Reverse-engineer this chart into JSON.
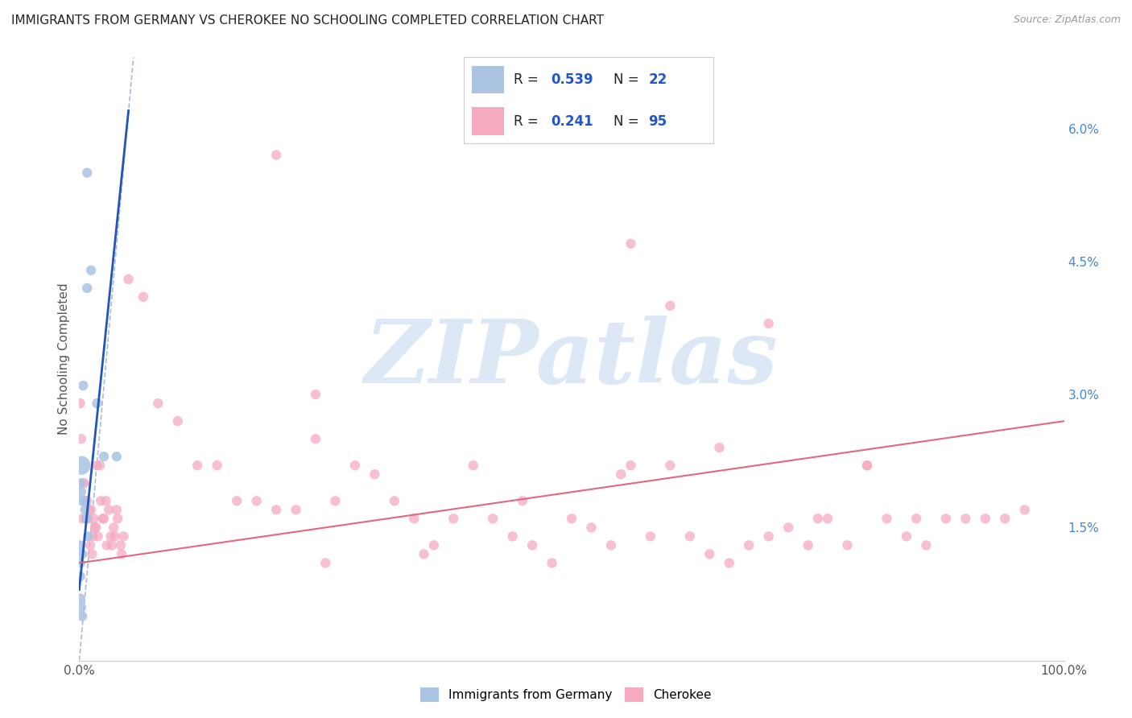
{
  "title": "IMMIGRANTS FROM GERMANY VS CHEROKEE NO SCHOOLING COMPLETED CORRELATION CHART",
  "source": "Source: ZipAtlas.com",
  "ylabel": "No Schooling Completed",
  "xlim": [
    0.0,
    1.0
  ],
  "ylim": [
    0.0,
    0.068
  ],
  "yticks_right": [
    0.015,
    0.03,
    0.045,
    0.06
  ],
  "ytickslabels_right": [
    "1.5%",
    "3.0%",
    "4.5%",
    "6.0%"
  ],
  "blue_color": "#aac4e2",
  "pink_color": "#f5aabf",
  "blue_line_color": "#2255bb",
  "pink_line_color": "#e06880",
  "dash_line_color": "#aabbdd",
  "watermark": "ZIPatlas",
  "watermark_blue": "#dce8f5",
  "watermark_gray": "#c8d8e8",
  "background_color": "#ffffff",
  "grid_color": "#dddddd",
  "title_fontsize": 11,
  "blue_x": [
    0.008,
    0.012,
    0.008,
    0.004,
    0.018,
    0.025,
    0.038,
    0.002,
    0.001,
    0.002,
    0.003,
    0.005,
    0.006,
    0.007,
    0.009,
    0.001,
    0.003,
    0.001,
    0.001,
    0.001,
    0.002,
    0.003
  ],
  "blue_y": [
    0.055,
    0.044,
    0.042,
    0.031,
    0.029,
    0.023,
    0.023,
    0.022,
    0.02,
    0.019,
    0.018,
    0.018,
    0.017,
    0.016,
    0.014,
    0.013,
    0.012,
    0.011,
    0.0095,
    0.007,
    0.006,
    0.005
  ],
  "blue_sizes": [
    80,
    80,
    80,
    80,
    80,
    80,
    80,
    280,
    80,
    80,
    80,
    80,
    80,
    80,
    80,
    80,
    80,
    80,
    80,
    80,
    80,
    80
  ],
  "pink_x": [
    0.005,
    0.008,
    0.012,
    0.015,
    0.018,
    0.022,
    0.025,
    0.028,
    0.032,
    0.035,
    0.038,
    0.042,
    0.045,
    0.002,
    0.004,
    0.006,
    0.009,
    0.011,
    0.014,
    0.016,
    0.019,
    0.021,
    0.024,
    0.027,
    0.03,
    0.033,
    0.036,
    0.039,
    0.043,
    0.001,
    0.003,
    0.007,
    0.01,
    0.013,
    0.017,
    0.05,
    0.065,
    0.08,
    0.1,
    0.12,
    0.14,
    0.16,
    0.18,
    0.2,
    0.22,
    0.24,
    0.26,
    0.28,
    0.3,
    0.32,
    0.34,
    0.36,
    0.38,
    0.4,
    0.42,
    0.44,
    0.46,
    0.48,
    0.5,
    0.52,
    0.54,
    0.56,
    0.58,
    0.6,
    0.62,
    0.64,
    0.66,
    0.68,
    0.7,
    0.72,
    0.74,
    0.76,
    0.78,
    0.8,
    0.82,
    0.84,
    0.86,
    0.88,
    0.9,
    0.92,
    0.94,
    0.96,
    0.2,
    0.24,
    0.56,
    0.6,
    0.7,
    0.8,
    0.85,
    0.75,
    0.65,
    0.55,
    0.45,
    0.35,
    0.25
  ],
  "pink_y": [
    0.02,
    0.018,
    0.017,
    0.016,
    0.022,
    0.018,
    0.016,
    0.013,
    0.014,
    0.015,
    0.017,
    0.013,
    0.014,
    0.025,
    0.02,
    0.018,
    0.016,
    0.013,
    0.014,
    0.015,
    0.014,
    0.022,
    0.016,
    0.018,
    0.017,
    0.013,
    0.014,
    0.016,
    0.012,
    0.029,
    0.016,
    0.016,
    0.017,
    0.012,
    0.015,
    0.043,
    0.041,
    0.029,
    0.027,
    0.022,
    0.022,
    0.018,
    0.018,
    0.017,
    0.017,
    0.025,
    0.018,
    0.022,
    0.021,
    0.018,
    0.016,
    0.013,
    0.016,
    0.022,
    0.016,
    0.014,
    0.013,
    0.011,
    0.016,
    0.015,
    0.013,
    0.022,
    0.014,
    0.022,
    0.014,
    0.012,
    0.011,
    0.013,
    0.014,
    0.015,
    0.013,
    0.016,
    0.013,
    0.022,
    0.016,
    0.014,
    0.013,
    0.016,
    0.016,
    0.016,
    0.016,
    0.017,
    0.057,
    0.03,
    0.047,
    0.04,
    0.038,
    0.022,
    0.016,
    0.016,
    0.024,
    0.021,
    0.018,
    0.012,
    0.011
  ],
  "pink_sizes": [
    80,
    80,
    80,
    80,
    80,
    80,
    80,
    80,
    80,
    80,
    80,
    80,
    80,
    80,
    80,
    80,
    80,
    80,
    80,
    80,
    80,
    80,
    80,
    80,
    80,
    80,
    80,
    80,
    80,
    80,
    80,
    80,
    80,
    80,
    80,
    80,
    80,
    80,
    80,
    80,
    80,
    80,
    80,
    80,
    80,
    80,
    80,
    80,
    80,
    80,
    80,
    80,
    80,
    80,
    80,
    80,
    80,
    80,
    80,
    80,
    80,
    80,
    80,
    80,
    80,
    80,
    80,
    80,
    80,
    80,
    80,
    80,
    80,
    80,
    80,
    80,
    80,
    80,
    80,
    80,
    80,
    80,
    80,
    80,
    80,
    80,
    80,
    80,
    80,
    80,
    80,
    80,
    80,
    80,
    80
  ],
  "blue_line_x": [
    0.0,
    0.05
  ],
  "blue_line_y": [
    0.008,
    0.062
  ],
  "pink_line_x": [
    0.0,
    1.0
  ],
  "pink_line_y": [
    0.011,
    0.027
  ],
  "dash_line_x": [
    0.0,
    0.055
  ],
  "dash_line_y": [
    0.0,
    0.068
  ]
}
